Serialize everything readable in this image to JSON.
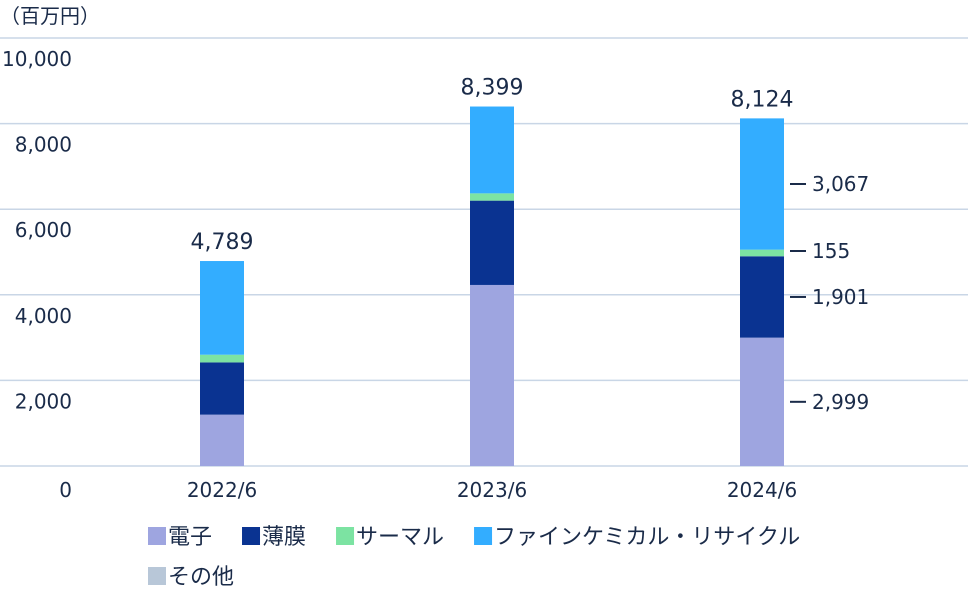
{
  "chart_data": {
    "type": "bar",
    "stacked": true,
    "unit_label": "（百万円）",
    "categories": [
      "2022/6",
      "2023/6",
      "2024/6"
    ],
    "series": [
      {
        "name": "電子",
        "color": "#9ea5e0",
        "values": [
          1200,
          4230,
          2999
        ]
      },
      {
        "name": "薄膜",
        "color": "#0a3391",
        "values": [
          1220,
          1970,
          1901
        ]
      },
      {
        "name": "サーマル",
        "color": "#7ce3a2",
        "values": [
          180,
          170,
          155
        ]
      },
      {
        "name": "ファインケミカル・リサイクル",
        "color": "#33adff",
        "values": [
          2189,
          2029,
          3067
        ]
      },
      {
        "name": "その他",
        "color": "#b8c7d8",
        "values": [
          0,
          0,
          0
        ]
      }
    ],
    "totals": [
      "4,789",
      "8,399",
      "8,124"
    ],
    "segment_labels": {
      "category": "2024/6",
      "labels": [
        "2,999",
        "1,901",
        "155",
        "3,067"
      ]
    },
    "ylim": [
      0,
      10000
    ],
    "yticks": [
      0,
      2000,
      4000,
      6000,
      8000,
      10000
    ],
    "ytick_labels": [
      "0",
      "2,000",
      "4,000",
      "6,000",
      "8,000",
      "10,000"
    ],
    "grid": true,
    "legend_position": "bottom"
  }
}
